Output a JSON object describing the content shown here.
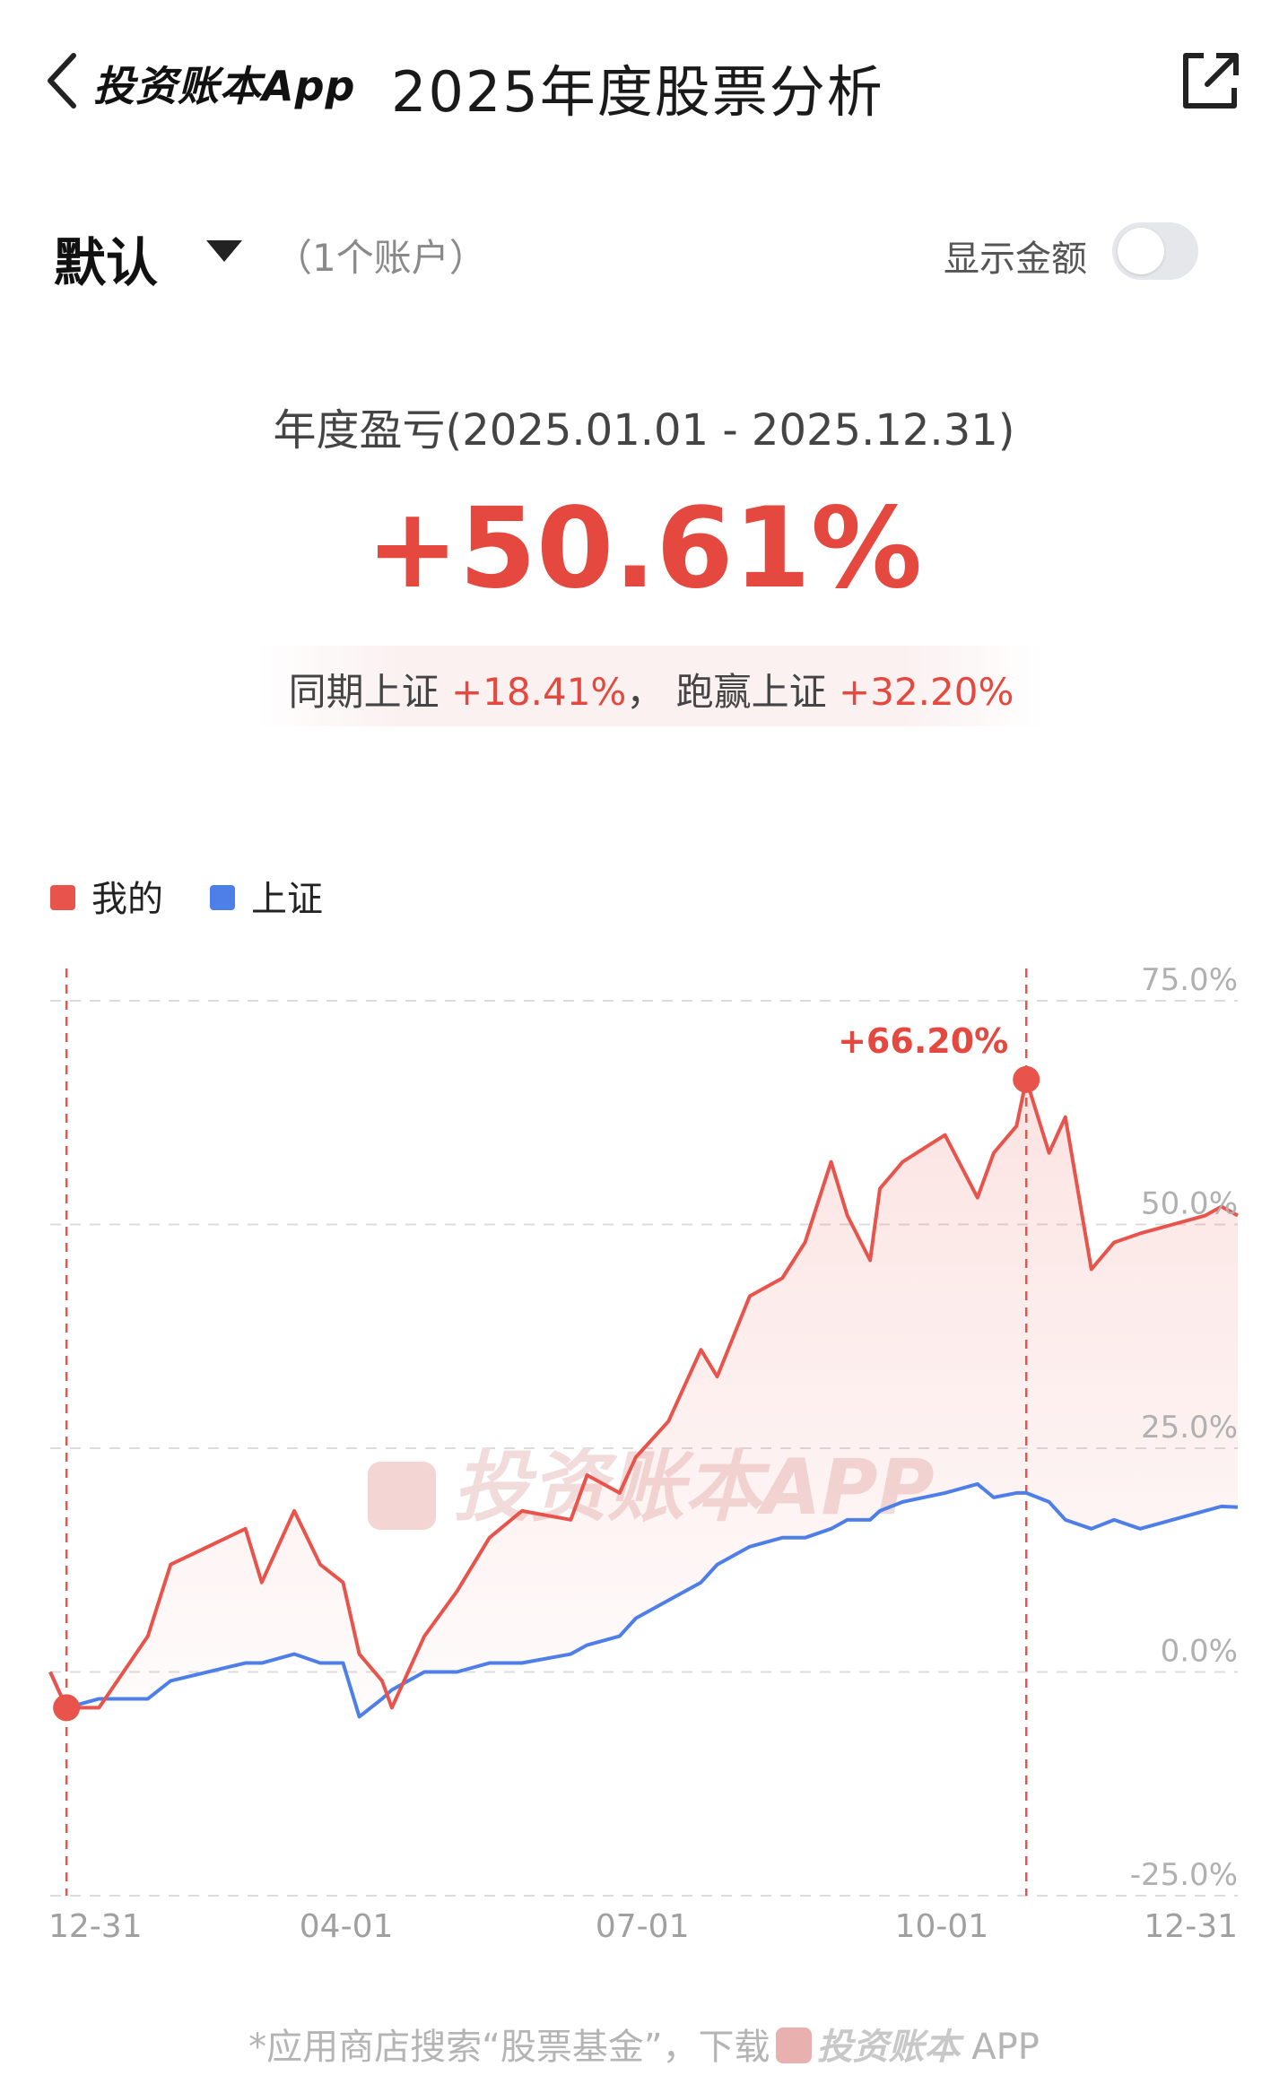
{
  "header": {
    "brand": "投资账本App",
    "title": "2025年度股票分析"
  },
  "account": {
    "name": "默认",
    "count": "（1个账户）",
    "show_amount_label": "显示金额",
    "show_amount_on": false
  },
  "summary": {
    "label": "年度盈亏(2025.01.01 - 2025.12.31)",
    "return": "+50.61%",
    "compare_prefix": "同期上证 ",
    "index_return": "+18.41%",
    "compare_mid": "，  跑赢上证 ",
    "excess_return": "+32.20%"
  },
  "legend": [
    {
      "label": "我的",
      "color": "#e8544b"
    },
    {
      "label": "上证",
      "color": "#4e7fe8"
    }
  ],
  "watermark": "投资账本APP",
  "footer": {
    "text": "*应用商店搜索“股票基金”，下载",
    "brand": "投资账本",
    "suffix": " APP"
  },
  "chart_data": {
    "type": "line",
    "ylim": [
      -25,
      75
    ],
    "yticks": [
      "75.0%",
      "50.0%",
      "25.0%",
      "0.0%",
      "-25.0%"
    ],
    "ytick_values": [
      75,
      50,
      25,
      0,
      -25
    ],
    "x_labels": [
      "12-31",
      "04-01",
      "07-01",
      "10-01",
      "12-31"
    ],
    "x_label_days": [
      0,
      91,
      182,
      274,
      365
    ],
    "x_days": [
      0,
      5,
      15,
      30,
      37,
      60,
      65,
      75,
      83,
      90,
      95,
      102,
      105,
      115,
      125,
      135,
      145,
      160,
      165,
      175,
      180,
      190,
      200,
      205,
      215,
      225,
      232,
      240,
      245,
      252,
      255,
      262,
      275,
      285,
      290,
      297,
      300,
      307,
      312,
      320,
      327,
      335,
      345,
      355,
      360,
      365
    ],
    "series": [
      {
        "name": "我的",
        "color": "#e8544b",
        "values": [
          0,
          -4,
          -4,
          4,
          12,
          16,
          10,
          18,
          12,
          10,
          2,
          -1,
          -4,
          4,
          9,
          15,
          18,
          17,
          22,
          20,
          24,
          28,
          36,
          33,
          42,
          44,
          48,
          57,
          51,
          46,
          54,
          57,
          60,
          53,
          58,
          61,
          66.2,
          58,
          62,
          45,
          48,
          49,
          50,
          51,
          52,
          51
        ]
      },
      {
        "name": "上证",
        "color": "#4e7fe8",
        "values": [
          0,
          -4,
          -3,
          -3,
          -1,
          1,
          1,
          2,
          1,
          1,
          -5,
          -3,
          -2,
          0,
          0,
          1,
          1,
          2,
          3,
          4,
          6,
          8,
          10,
          12,
          14,
          15,
          15,
          16,
          17,
          17,
          18,
          19,
          20,
          21,
          19.5,
          20,
          20,
          19,
          17,
          16,
          17,
          16,
          17,
          18,
          18.5,
          18.41
        ]
      }
    ],
    "start_marker_day": 5,
    "peak_marker_day": 300,
    "peak_label": "+66.20%"
  }
}
